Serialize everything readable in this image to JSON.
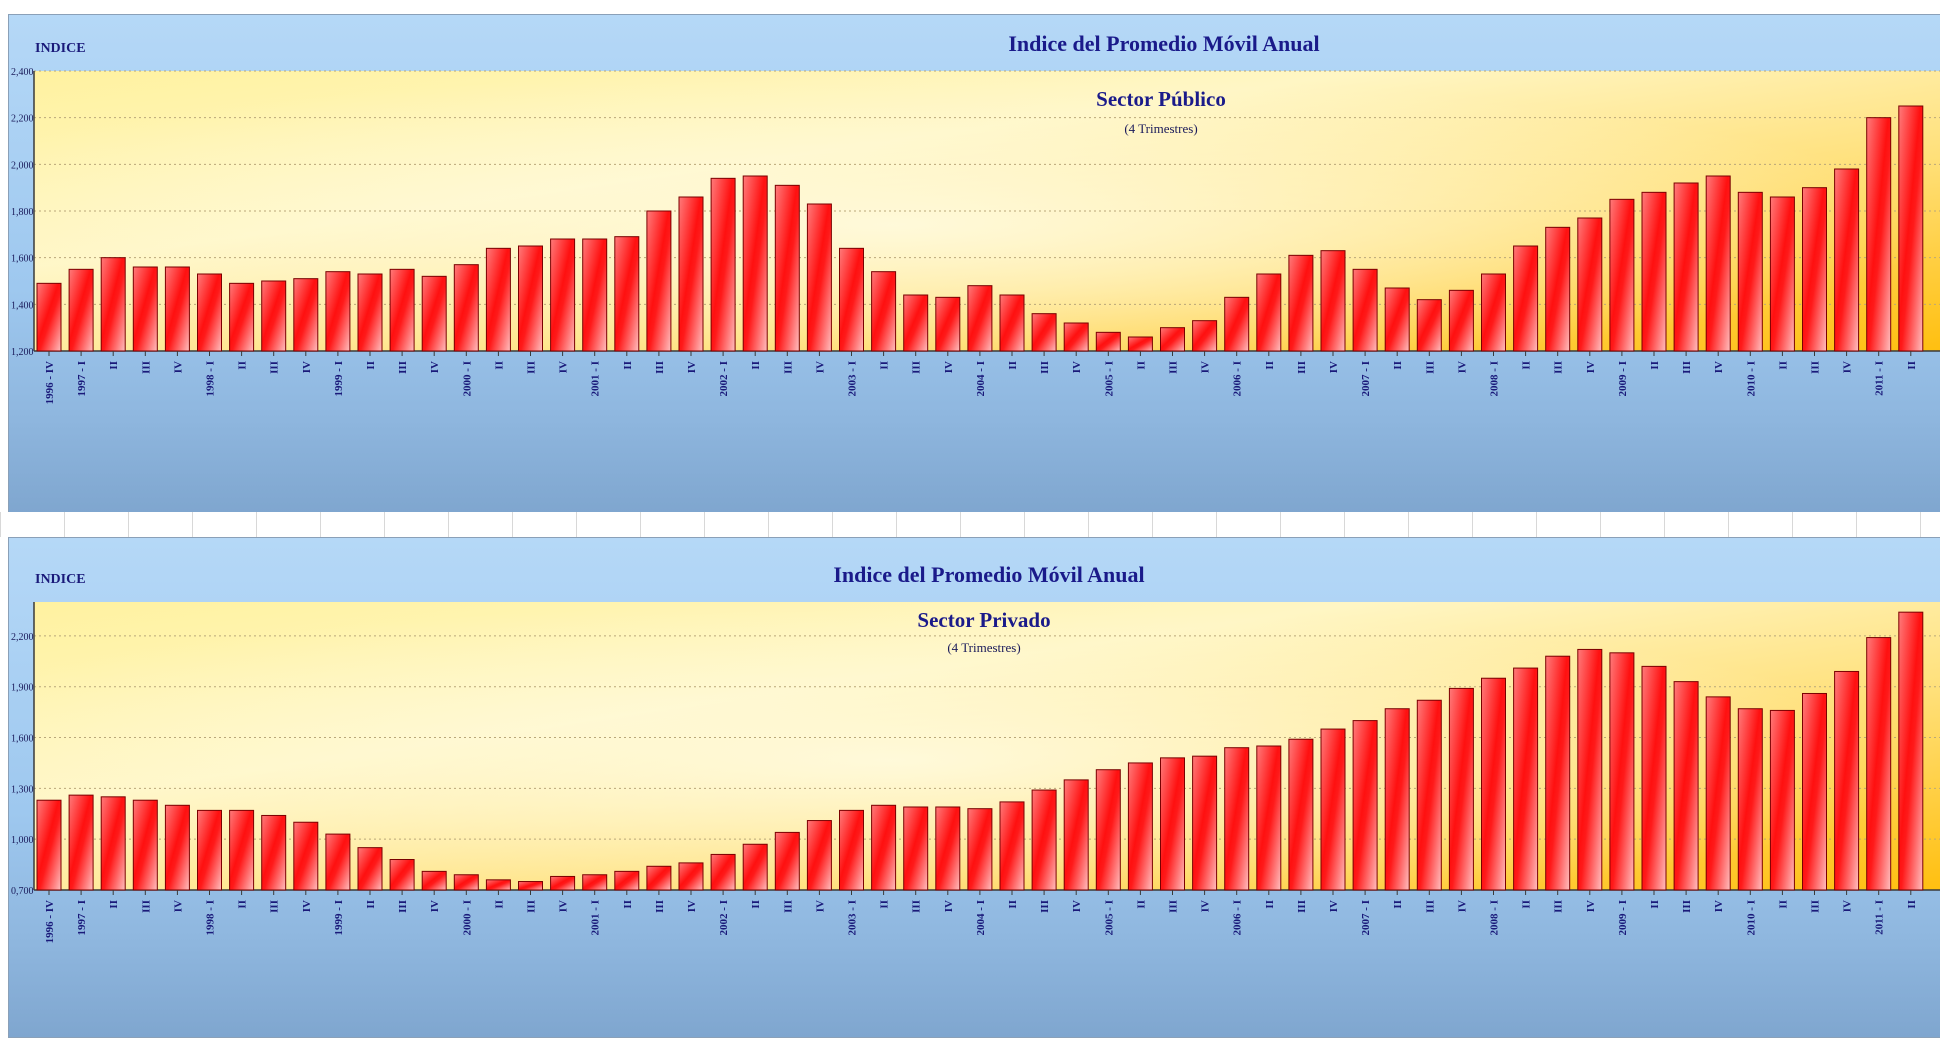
{
  "chart_data": [
    {
      "type": "bar",
      "title": "Indice del Promedio Móvil Anual",
      "subtitle": "Sector Público",
      "note": "(4 Trimestres)",
      "ylabel": "INDICE",
      "ylim": [
        1.2,
        2.4
      ],
      "yticks": [
        "1,200",
        "1,400",
        "1,600",
        "1,800",
        "2,000",
        "2,200",
        "2,400"
      ],
      "categories": [
        "1996 - IV",
        "1997 - I",
        "II",
        "III",
        "IV",
        "1998 - I",
        "II",
        "III",
        "IV",
        "1999 - I",
        "II",
        "III",
        "IV",
        "2000 - I",
        "II",
        "III",
        "IV",
        "2001 - I",
        "II",
        "III",
        "IV",
        "2002 - I",
        "II",
        "III",
        "IV",
        "2003 - I",
        "II",
        "III",
        "IV",
        "2004 - I",
        "II",
        "III",
        "IV",
        "2005 - I",
        "II",
        "III",
        "IV",
        "2006 - I",
        "II",
        "III",
        "IV",
        "2007 - I",
        "II",
        "III",
        "IV",
        "2008 - I",
        "II",
        "III",
        "IV",
        "2009 - I",
        "II",
        "III",
        "IV",
        "2010 - I",
        "II",
        "III",
        "IV",
        "2011 - I",
        "II"
      ],
      "values": [
        1.49,
        1.55,
        1.6,
        1.56,
        1.56,
        1.53,
        1.49,
        1.5,
        1.51,
        1.54,
        1.53,
        1.55,
        1.52,
        1.57,
        1.64,
        1.65,
        1.68,
        1.68,
        1.69,
        1.8,
        1.86,
        1.94,
        1.95,
        1.91,
        1.83,
        1.64,
        1.54,
        1.44,
        1.43,
        1.48,
        1.44,
        1.36,
        1.32,
        1.28,
        1.26,
        1.3,
        1.33,
        1.43,
        1.53,
        1.61,
        1.63,
        1.55,
        1.47,
        1.42,
        1.46,
        1.53,
        1.65,
        1.73,
        1.77,
        1.85,
        1.88,
        1.92,
        1.95,
        1.88,
        1.86,
        1.9,
        1.98,
        2.2,
        2.25
      ]
    },
    {
      "type": "bar",
      "title": "Indice del Promedio Móvil Anual",
      "subtitle": "Sector Privado",
      "note": "(4 Trimestres)",
      "ylabel": "INDICE",
      "ylim": [
        0.7,
        2.4
      ],
      "yticks": [
        "0,700",
        "1,000",
        "1,300",
        "1,600",
        "1,900",
        "2,200"
      ],
      "categories": [
        "1996 - IV",
        "1997 - I",
        "II",
        "III",
        "IV",
        "1998 - I",
        "II",
        "III",
        "IV",
        "1999 - I",
        "II",
        "III",
        "IV",
        "2000 - I",
        "II",
        "III",
        "IV",
        "2001 - I",
        "II",
        "III",
        "IV",
        "2002 - I",
        "II",
        "III",
        "IV",
        "2003 - I",
        "II",
        "III",
        "IV",
        "2004 - I",
        "II",
        "III",
        "IV",
        "2005 - I",
        "II",
        "III",
        "IV",
        "2006 - I",
        "II",
        "III",
        "IV",
        "2007 - I",
        "II",
        "III",
        "IV",
        "2008 - I",
        "II",
        "III",
        "IV",
        "2009 - I",
        "II",
        "III",
        "IV",
        "2010 - I",
        "II",
        "III",
        "IV",
        "2011 - I",
        "II"
      ],
      "values": [
        1.23,
        1.26,
        1.25,
        1.23,
        1.2,
        1.17,
        1.17,
        1.14,
        1.1,
        1.03,
        0.95,
        0.88,
        0.81,
        0.79,
        0.76,
        0.75,
        0.78,
        0.79,
        0.81,
        0.84,
        0.86,
        0.91,
        0.97,
        1.04,
        1.11,
        1.17,
        1.2,
        1.19,
        1.19,
        1.18,
        1.22,
        1.29,
        1.35,
        1.41,
        1.45,
        1.48,
        1.49,
        1.54,
        1.55,
        1.59,
        1.65,
        1.7,
        1.77,
        1.82,
        1.89,
        1.95,
        2.01,
        2.08,
        2.12,
        2.1,
        2.02,
        1.93,
        1.84,
        1.77,
        1.76,
        1.86,
        1.99,
        2.19,
        2.34
      ]
    }
  ]
}
